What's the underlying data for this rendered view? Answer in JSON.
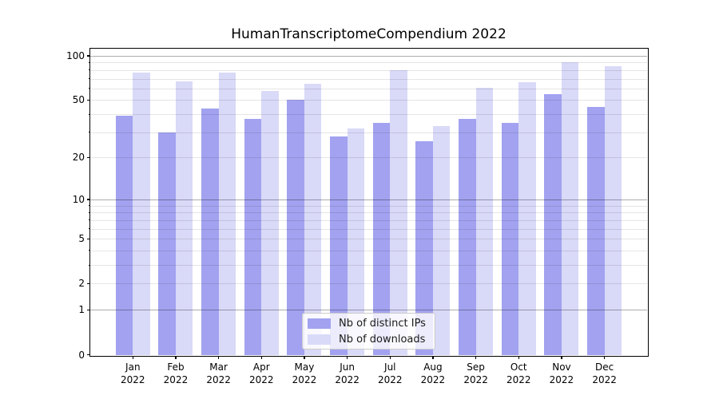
{
  "figure": {
    "title": "HumanTranscriptomeCompendium 2022"
  },
  "chart_data": {
    "type": "bar",
    "title": "HumanTranscriptomeCompendium 2022",
    "categories": [
      "Jan",
      "Feb",
      "Mar",
      "Apr",
      "May",
      "Jun",
      "Jul",
      "Aug",
      "Sep",
      "Oct",
      "Nov",
      "Dec"
    ],
    "category_year": "2022",
    "series": [
      {
        "name": "Nb of distinct IPs",
        "color": "#a2a2f0",
        "values": [
          39,
          30,
          44,
          37,
          50,
          28,
          35,
          26,
          37,
          35,
          55,
          45
        ]
      },
      {
        "name": "Nb of downloads",
        "color": "#d9d9f8",
        "values": [
          77,
          67,
          77,
          58,
          65,
          32,
          80,
          33,
          61,
          66,
          90,
          85
        ]
      }
    ],
    "xlabel": "",
    "ylabel": "",
    "yscale": "log1p",
    "ylim": [
      0,
      112
    ],
    "yticks": {
      "values": [
        0,
        1,
        2,
        5,
        10,
        20,
        50,
        100
      ],
      "labels": [
        "0",
        "1",
        "2",
        "5",
        "10",
        "20",
        "50",
        "100"
      ]
    },
    "grid": {
      "on": true,
      "major_values": [
        1,
        10,
        100
      ],
      "minor_values": [
        2,
        3,
        4,
        5,
        6,
        7,
        8,
        9,
        20,
        30,
        40,
        50,
        60,
        70,
        80,
        90
      ],
      "minor_tick_values": [
        3,
        4,
        6,
        7,
        8,
        9,
        30,
        40,
        60,
        70,
        80,
        90
      ]
    },
    "legend": {
      "position": "lower center",
      "items": [
        "Nb of distinct IPs",
        "Nb of downloads"
      ]
    }
  }
}
